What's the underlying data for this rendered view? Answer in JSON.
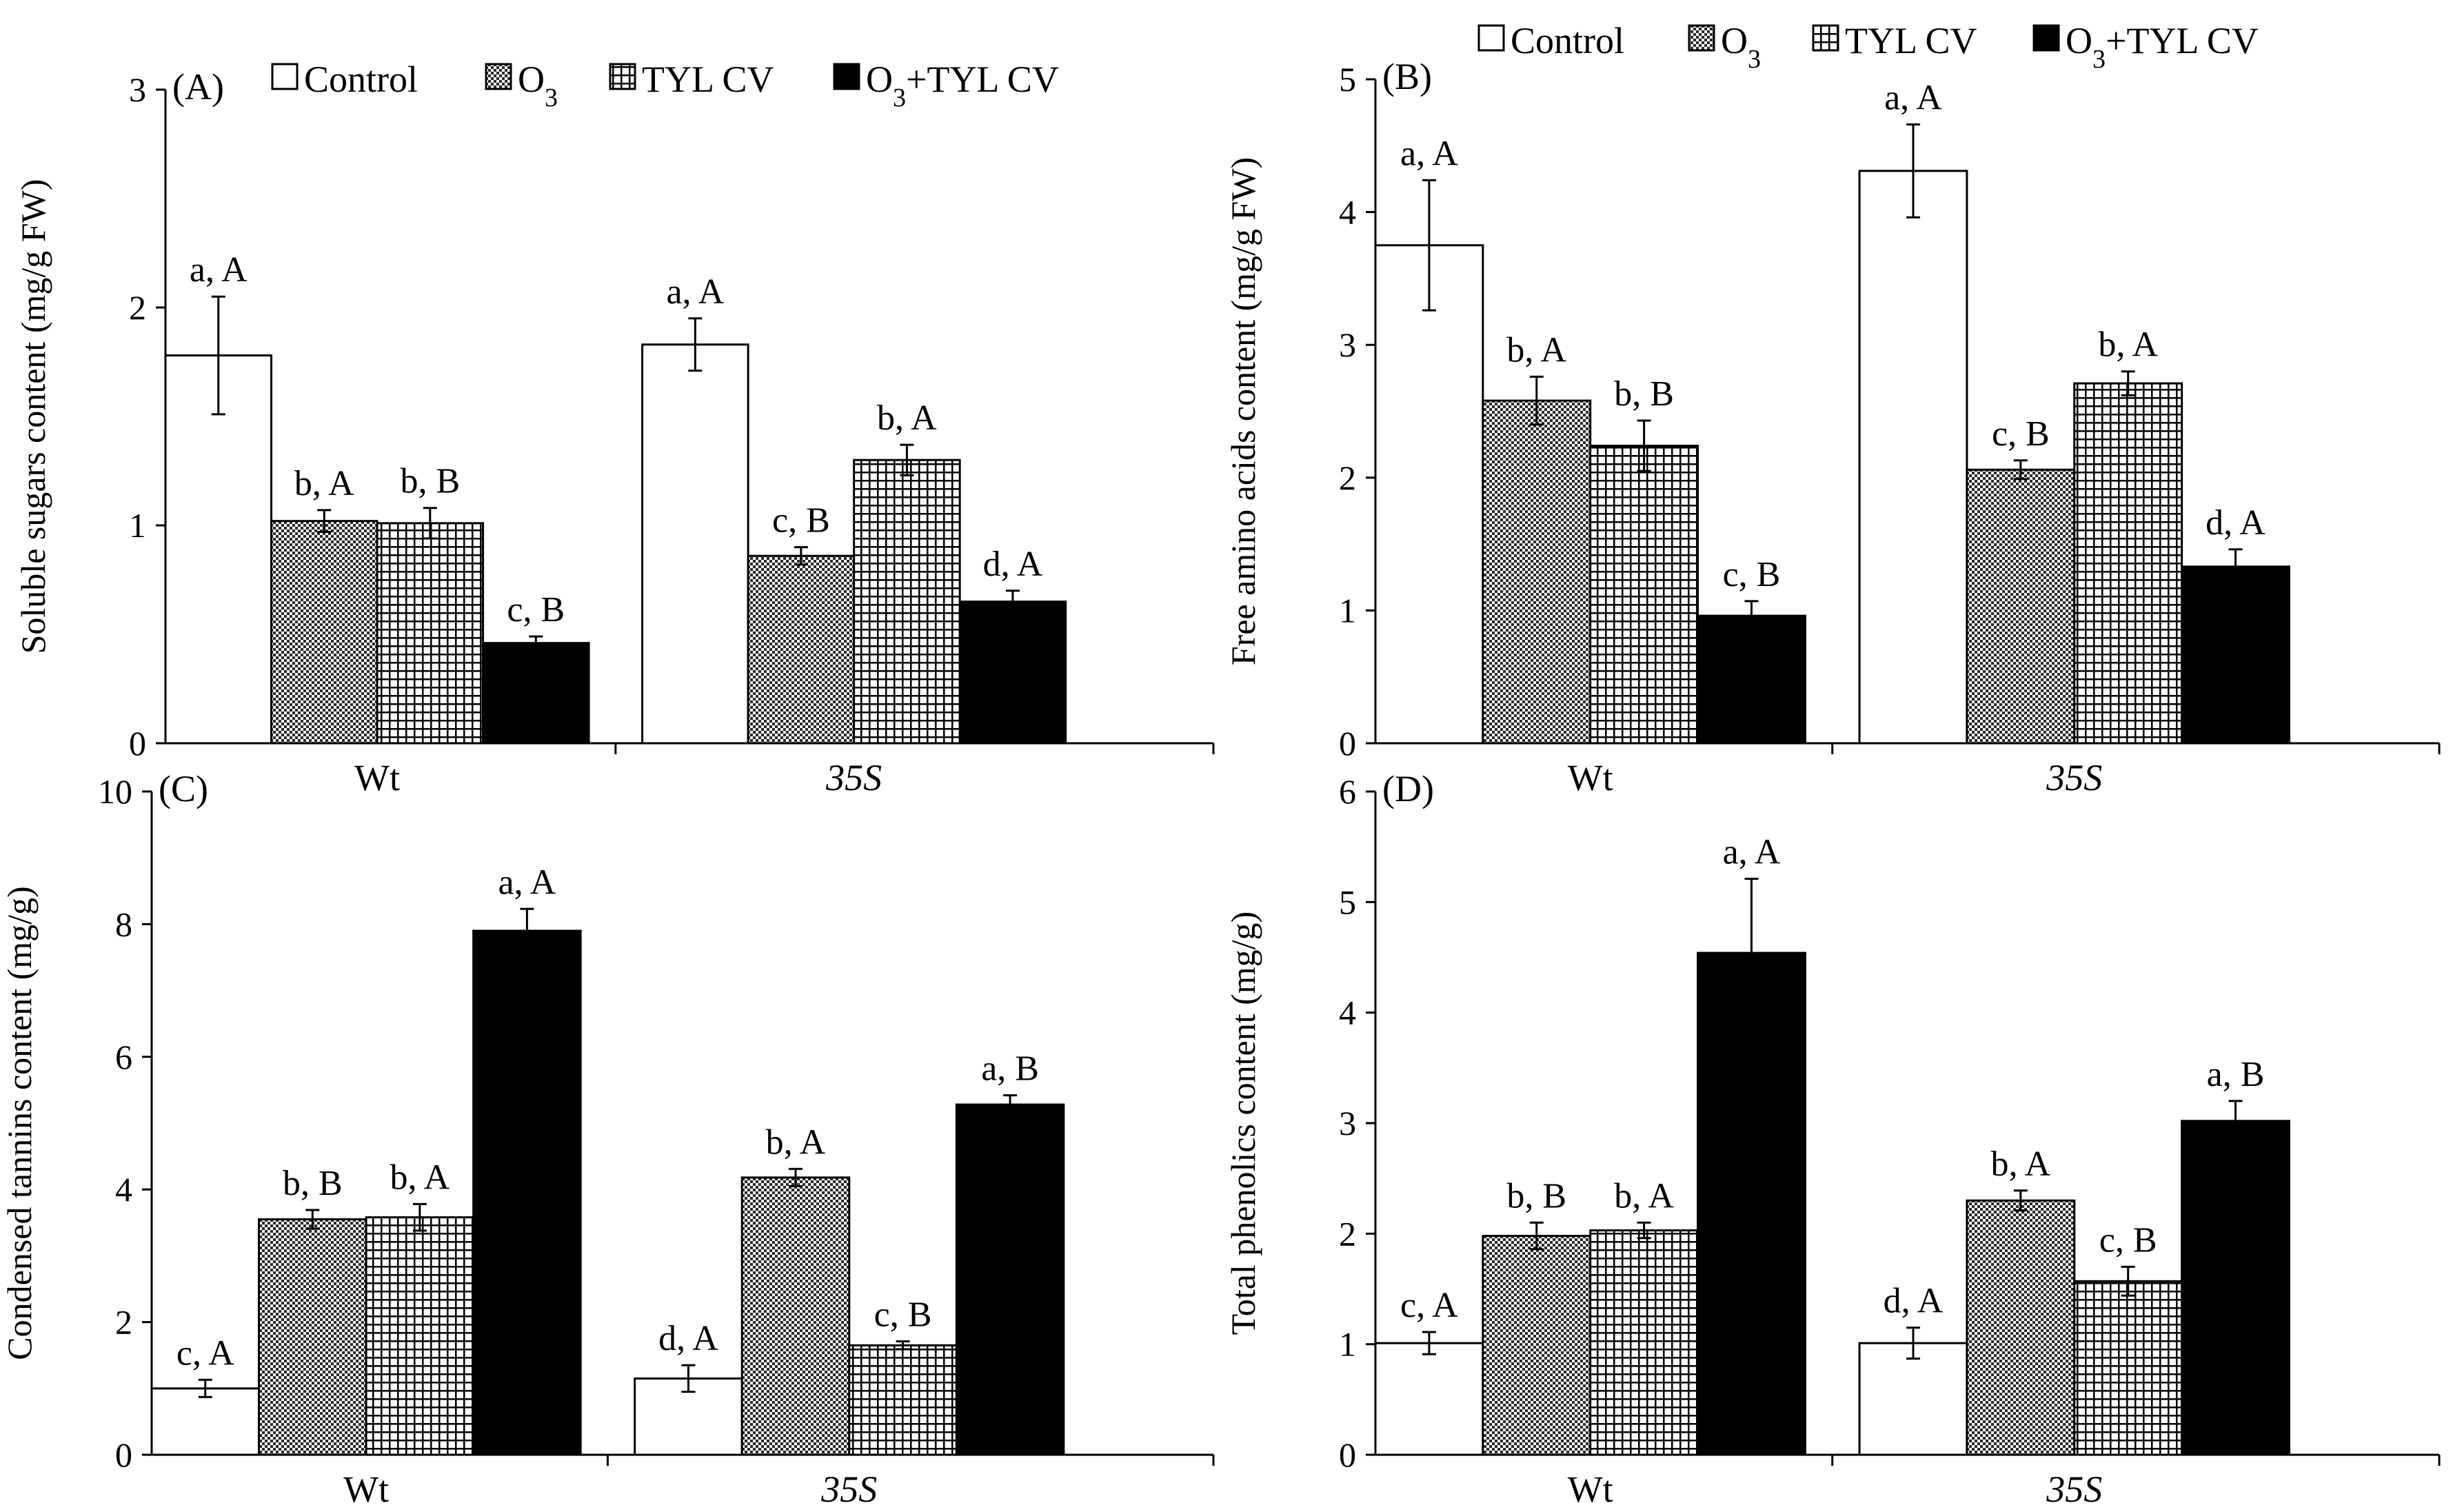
{
  "legend": [
    {
      "key": "control",
      "label": "Control"
    },
    {
      "key": "o3",
      "label": "O",
      "sub": "3"
    },
    {
      "key": "tylcv",
      "label": "TYL CV"
    },
    {
      "key": "o3tylcv",
      "label": "O",
      "sub": "3",
      "suffix": "+TYL CV"
    }
  ],
  "chart_data": [
    {
      "type": "bar",
      "panel_label": "(A)",
      "ylabel": "Soluble sugars content (mg/g FW)",
      "ylim": [
        0,
        3
      ],
      "yticks": [
        0,
        1,
        2,
        3
      ],
      "categories": [
        "Wt",
        "35S"
      ],
      "series": [
        {
          "name": "Control",
          "values": [
            1.78,
            1.83
          ],
          "errors": [
            0.27,
            0.12
          ],
          "letters": [
            "a, A",
            "a, A"
          ]
        },
        {
          "name": "O3",
          "values": [
            1.02,
            0.86
          ],
          "errors": [
            0.05,
            0.04
          ],
          "letters": [
            "b, A",
            "c, B"
          ]
        },
        {
          "name": "TYL CV",
          "values": [
            1.01,
            1.3
          ],
          "errors": [
            0.07,
            0.07
          ],
          "letters": [
            "b, B",
            "b, A"
          ]
        },
        {
          "name": "O3+TYL CV",
          "values": [
            0.46,
            0.65
          ],
          "errors": [
            0.03,
            0.05
          ],
          "letters": [
            "c, B",
            "d, A"
          ]
        }
      ]
    },
    {
      "type": "bar",
      "panel_label": "(B)",
      "ylabel": "Free amino acids content (mg/g FW)",
      "ylim": [
        0,
        5
      ],
      "yticks": [
        0,
        1,
        2,
        3,
        4,
        5
      ],
      "categories": [
        "Wt",
        "35S"
      ],
      "series": [
        {
          "name": "Control",
          "values": [
            3.75,
            4.31
          ],
          "errors": [
            0.49,
            0.35
          ],
          "letters": [
            "a, A",
            "a, A"
          ]
        },
        {
          "name": "O3",
          "values": [
            2.58,
            2.06
          ],
          "errors": [
            0.18,
            0.07
          ],
          "letters": [
            "b, A",
            "c, B"
          ]
        },
        {
          "name": "TYL CV",
          "values": [
            2.24,
            2.71
          ],
          "errors": [
            0.19,
            0.09
          ],
          "letters": [
            "b, B",
            "b, A"
          ]
        },
        {
          "name": "O3+TYL CV",
          "values": [
            0.96,
            1.33
          ],
          "errors": [
            0.11,
            0.13
          ],
          "letters": [
            "c, B",
            "d, A"
          ]
        }
      ]
    },
    {
      "type": "bar",
      "panel_label": "(C)",
      "ylabel": "Condensed tannins content (mg/g)",
      "ylim": [
        0,
        10
      ],
      "yticks": [
        0,
        2,
        4,
        6,
        8,
        10
      ],
      "categories": [
        "Wt",
        "35S"
      ],
      "series": [
        {
          "name": "Control",
          "values": [
            1.0,
            1.15
          ],
          "errors": [
            0.13,
            0.2
          ],
          "letters": [
            "c, A",
            "d, A"
          ]
        },
        {
          "name": "O3",
          "values": [
            3.55,
            4.18
          ],
          "errors": [
            0.14,
            0.13
          ],
          "letters": [
            "b, B",
            "b, A"
          ]
        },
        {
          "name": "TYL CV",
          "values": [
            3.58,
            1.65
          ],
          "errors": [
            0.2,
            0.06
          ],
          "letters": [
            "b, A",
            "c, B"
          ]
        },
        {
          "name": "O3+TYL CV",
          "values": [
            7.9,
            5.28
          ],
          "errors": [
            0.33,
            0.14
          ],
          "letters": [
            "a, A",
            "a, B"
          ]
        }
      ]
    },
    {
      "type": "bar",
      "panel_label": "(D)",
      "ylabel": "Total phenolics content (mg/g)",
      "ylim": [
        0,
        6
      ],
      "yticks": [
        0,
        1,
        2,
        3,
        4,
        5,
        6
      ],
      "categories": [
        "Wt",
        "35S"
      ],
      "series": [
        {
          "name": "Control",
          "values": [
            1.01,
            1.01
          ],
          "errors": [
            0.1,
            0.14
          ],
          "letters": [
            "c, A",
            "d, A"
          ]
        },
        {
          "name": "O3",
          "values": [
            1.98,
            2.3
          ],
          "errors": [
            0.12,
            0.09
          ],
          "letters": [
            "b, B",
            "b, A"
          ]
        },
        {
          "name": "TYL CV",
          "values": [
            2.03,
            1.57
          ],
          "errors": [
            0.07,
            0.13
          ],
          "letters": [
            "b, A",
            "c, B"
          ]
        },
        {
          "name": "O3+TYL CV",
          "values": [
            4.54,
            3.02
          ],
          "errors": [
            0.67,
            0.18
          ],
          "letters": [
            "a, A",
            "a, B"
          ]
        }
      ]
    }
  ]
}
